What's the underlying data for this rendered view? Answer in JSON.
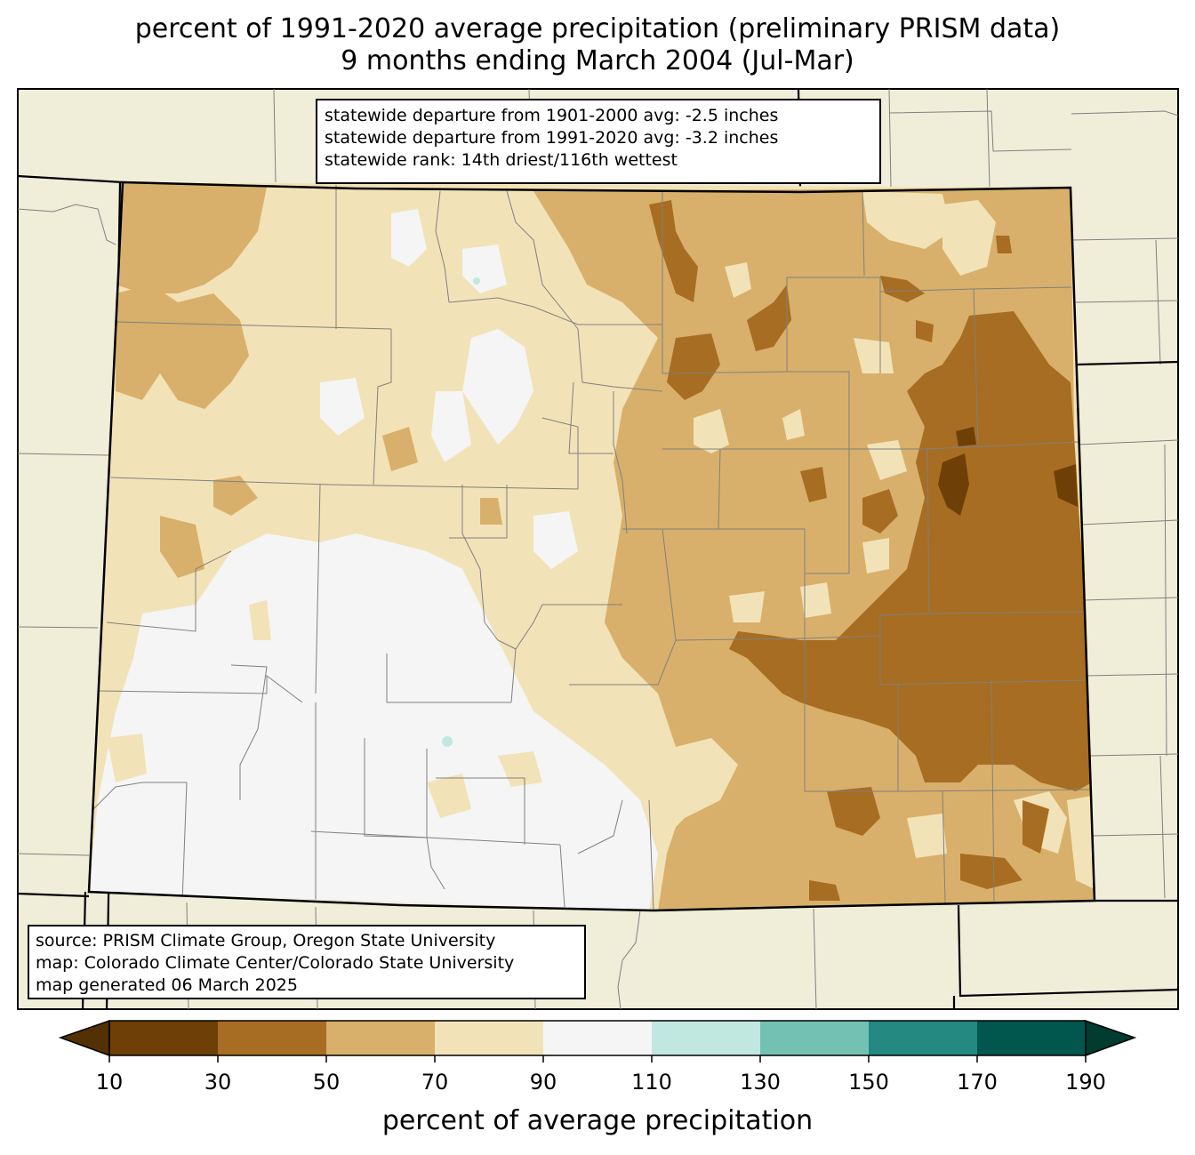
{
  "title": {
    "line1": "percent of 1991-2020 average precipitation (preliminary PRISM data)",
    "line2": "9 months ending March 2004 (Jul-Mar)"
  },
  "stats_box": {
    "lines": [
      "statewide departure from 1901-2000 avg: -2.5 inches",
      "statewide departure from 1991-2020 avg: -3.2 inches",
      "statewide rank: 14th driest/116th wettest"
    ]
  },
  "source_box": {
    "lines": [
      "source: PRISM Climate Group, Oregon State University",
      "map: Colorado Climate Center/Colorado State University",
      "map generated 06 March 2025"
    ]
  },
  "colorbar": {
    "label": "percent of average precipitation",
    "ticks": [
      "10",
      "30",
      "50",
      "70",
      "90",
      "110",
      "130",
      "150",
      "170",
      "190"
    ],
    "under_color": "#543005",
    "over_color": "#003c30",
    "colors": [
      "#6f3f08",
      "#a76d22",
      "#d8b06b",
      "#f2e2b7",
      "#f4f5f4",
      "#c1e7e1",
      "#73c1b3",
      "#238981",
      "#01564d"
    ]
  },
  "colors": {
    "background_land": "#f0edd9",
    "state_border": "#000000",
    "county_border": "#808080"
  }
}
